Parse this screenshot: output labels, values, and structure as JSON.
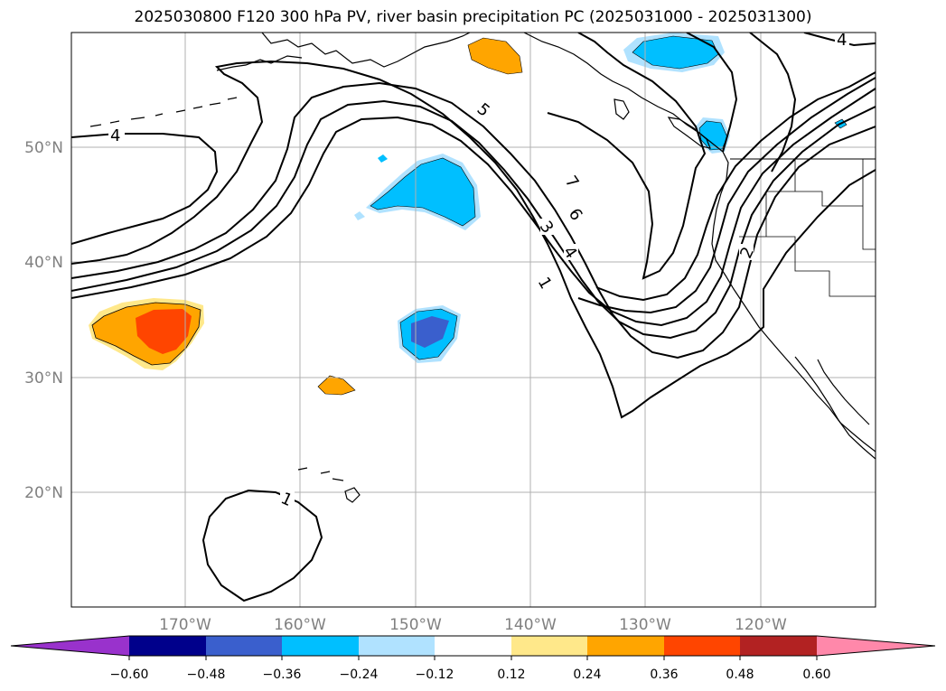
{
  "title": "2025030800 F120 300 hPa PV, river basin precipitation PC (2025031000 - 2025031300)",
  "map": {
    "lat_labels": [
      "50°N",
      "40°N",
      "30°N",
      "20°N"
    ],
    "lon_labels": [
      "170°W",
      "160°W",
      "150°W",
      "140°W",
      "130°W",
      "120°W"
    ],
    "pv_contour_labels": [
      "4",
      "5",
      "7",
      "6",
      "3",
      "4",
      "1",
      "2",
      "4",
      "1"
    ],
    "colors": {
      "coastline": "#000000",
      "pv_contour": "#000000",
      "grid": "#b0b0b0",
      "positive_anomaly": [
        "#ffe88a",
        "#ffa500",
        "#ff4500"
      ],
      "negative_anomaly": [
        "#b0e0fa",
        "#00bfff",
        "#4060d0"
      ]
    }
  },
  "colorbar": {
    "ticks": [
      "−0.60",
      "−0.48",
      "−0.36",
      "−0.24",
      "−0.12",
      "0.12",
      "0.24",
      "0.36",
      "0.48",
      "0.60"
    ],
    "colors": [
      "#9932cc",
      "#00008b",
      "#3a5fcd",
      "#00bfff",
      "#b0e2ff",
      "#ffffff",
      "#ffe88a",
      "#ffa500",
      "#ff4500",
      "#b22222",
      "#ff88aa"
    ]
  }
}
